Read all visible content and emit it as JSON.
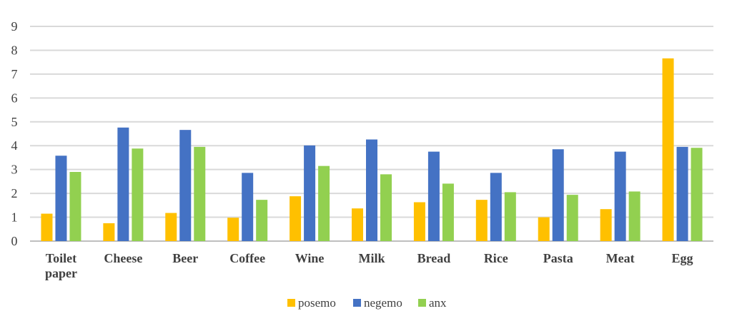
{
  "chart_data": {
    "type": "bar",
    "categories": [
      [
        "Toilet",
        "paper"
      ],
      [
        "Cheese"
      ],
      [
        "Beer"
      ],
      [
        "Coffee"
      ],
      [
        "Wine"
      ],
      [
        "Milk"
      ],
      [
        "Bread"
      ],
      [
        "Rice"
      ],
      [
        "Pasta"
      ],
      [
        "Meat"
      ],
      [
        "Egg"
      ]
    ],
    "series": [
      {
        "name": "posemo",
        "color": "#FFC000",
        "values": [
          1.15,
          0.75,
          1.18,
          0.98,
          1.88,
          1.37,
          1.63,
          1.73,
          1.0,
          1.34,
          7.66
        ]
      },
      {
        "name": "negemo",
        "color": "#4472C4",
        "values": [
          3.58,
          4.76,
          4.66,
          2.86,
          4.01,
          4.26,
          3.75,
          2.86,
          3.85,
          3.75,
          3.95
        ]
      },
      {
        "name": "anx",
        "color": "#92D050",
        "values": [
          2.9,
          3.88,
          3.95,
          1.73,
          3.15,
          2.8,
          2.41,
          2.05,
          1.94,
          2.08,
          3.91
        ]
      }
    ],
    "yticks": [
      "0",
      "1",
      "2",
      "3",
      "4",
      "5",
      "6",
      "7",
      "8",
      "9"
    ],
    "ylim": [
      0,
      9
    ],
    "grid": true,
    "legend": "bottom-center",
    "title": "",
    "xlabel": "",
    "ylabel": ""
  }
}
